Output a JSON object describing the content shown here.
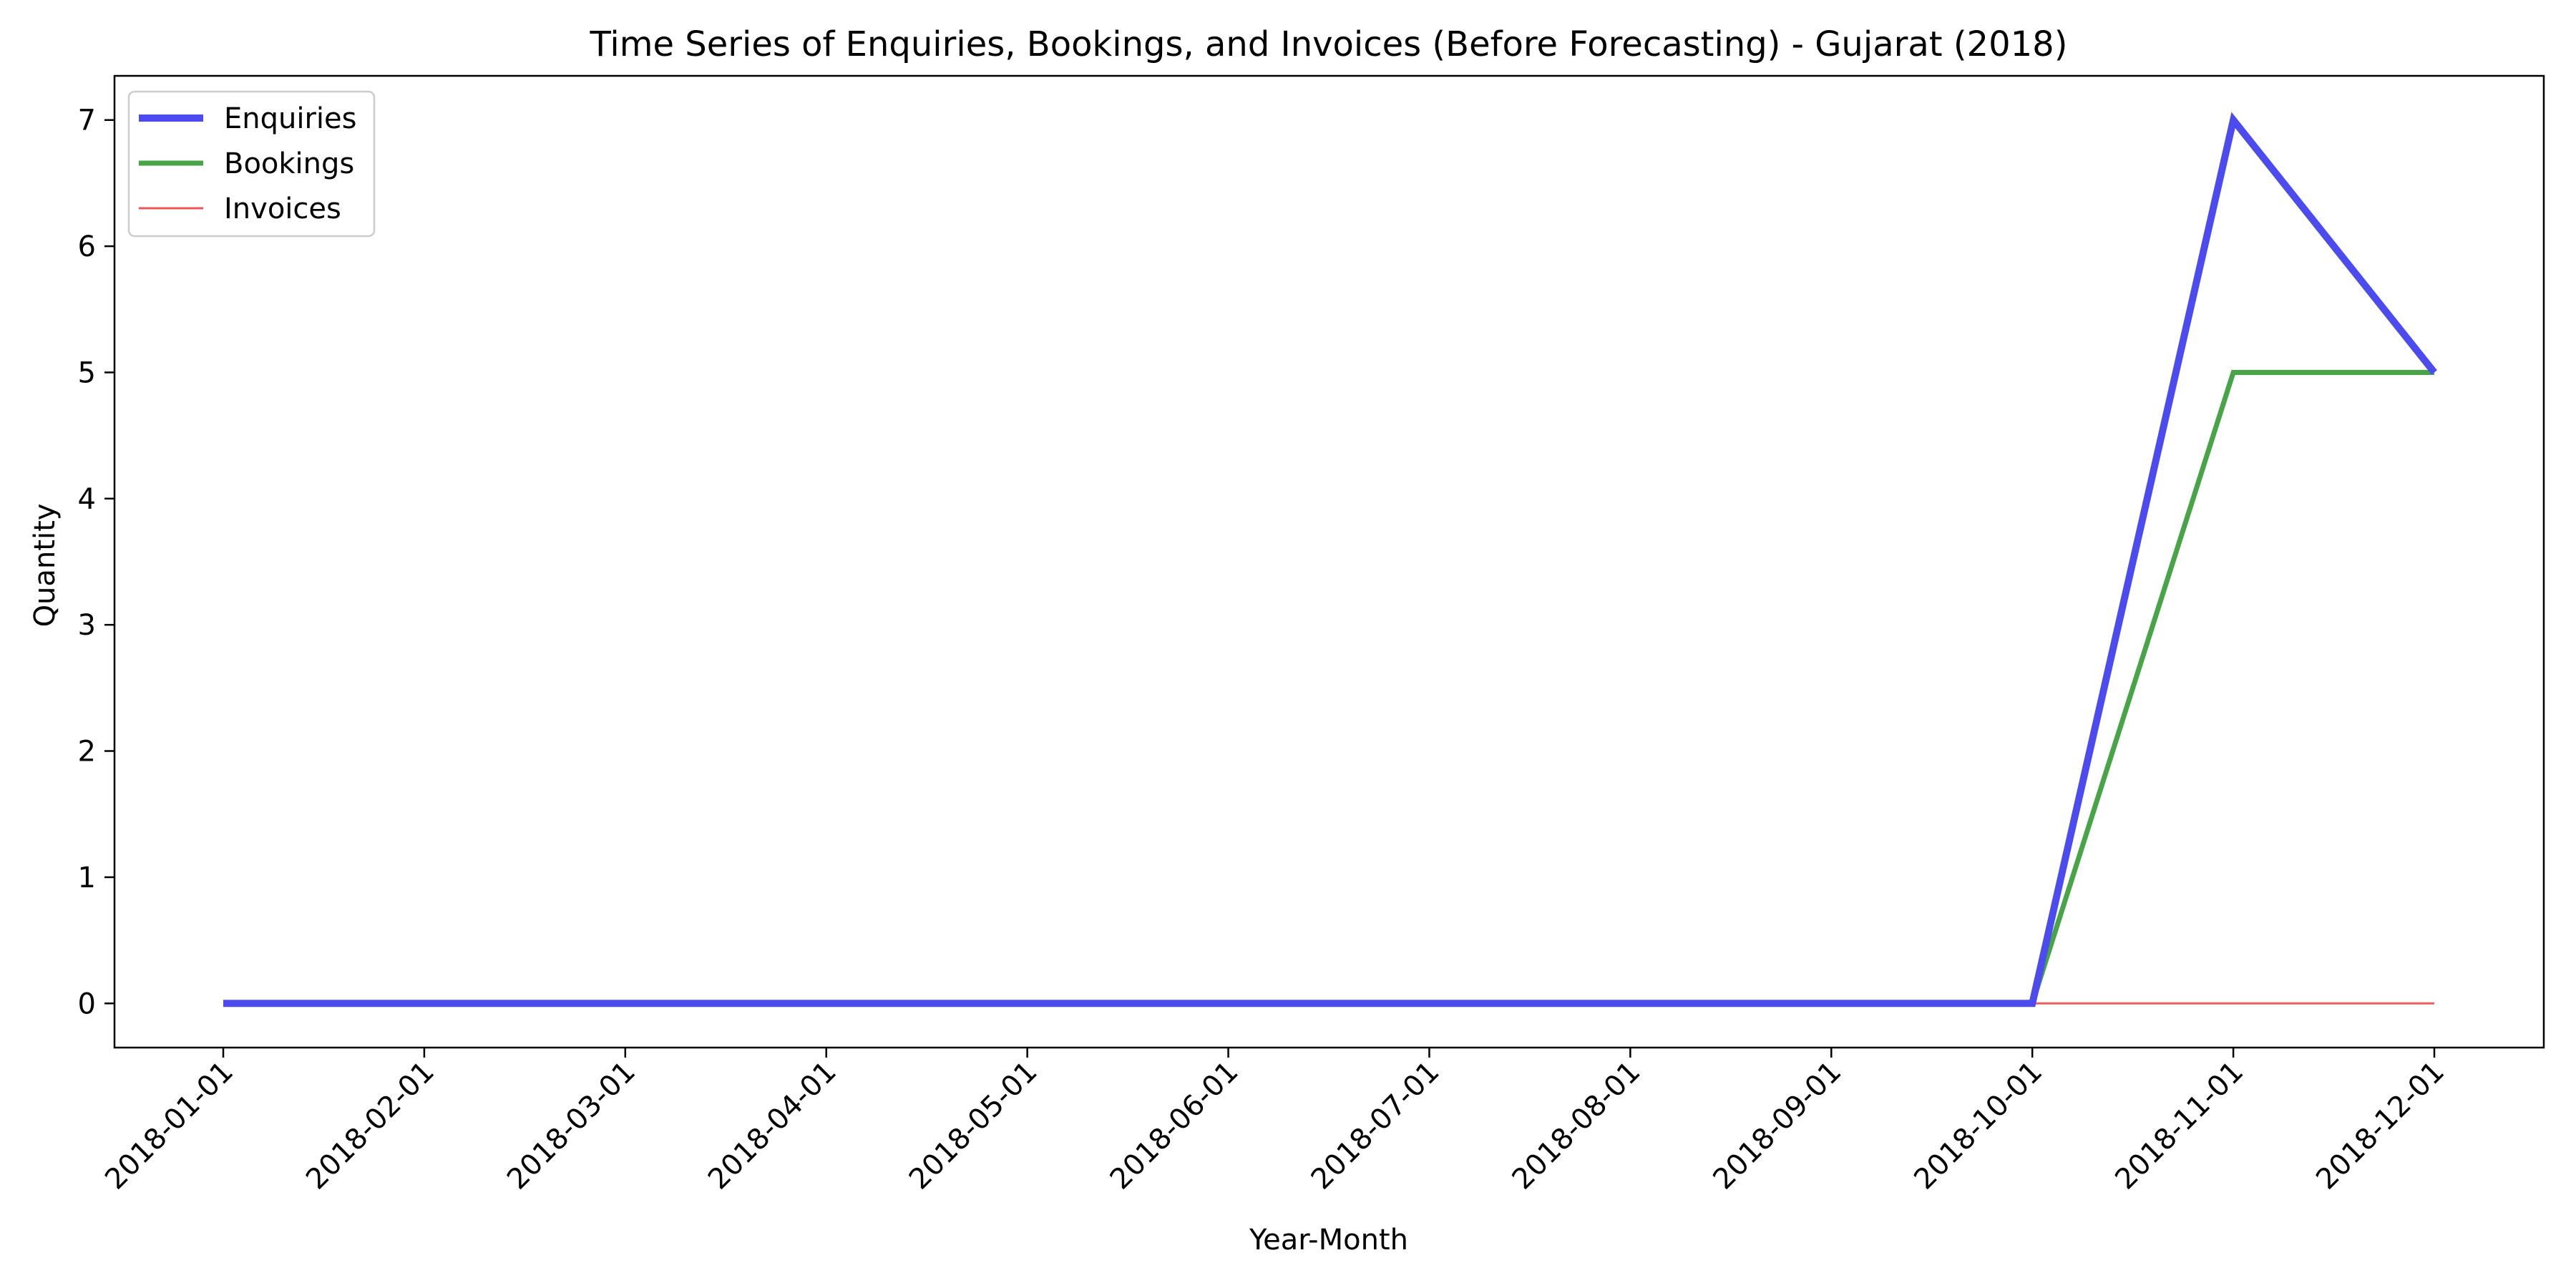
{
  "chart_data": {
    "type": "line",
    "title": "Time Series of Enquiries, Bookings, and Invoices (Before Forecasting) - Gujarat (2018)",
    "xlabel": "Year-Month",
    "ylabel": "Quantity",
    "x": [
      "2018-01-01",
      "2018-02-01",
      "2018-03-01",
      "2018-04-01",
      "2018-05-01",
      "2018-06-01",
      "2018-07-01",
      "2018-08-01",
      "2018-09-01",
      "2018-10-01",
      "2018-11-01",
      "2018-12-01"
    ],
    "ylim": [
      -0.35,
      7.35
    ],
    "yticks": [
      0,
      1,
      2,
      3,
      4,
      5,
      6,
      7
    ],
    "grid": false,
    "legend_position": "top-left",
    "series": [
      {
        "name": "Enquiries",
        "color": "#4b4bf0",
        "values": [
          0,
          0,
          0,
          0,
          0,
          0,
          0,
          0,
          0,
          0,
          7,
          5
        ]
      },
      {
        "name": "Bookings",
        "color": "#47a447",
        "values": [
          0,
          0,
          0,
          0,
          0,
          0,
          0,
          0,
          0,
          0,
          5,
          5
        ]
      },
      {
        "name": "Invoices",
        "color": "#ee5555",
        "values": [
          0,
          0,
          0,
          0,
          0,
          0,
          0,
          0,
          0,
          0,
          0,
          0
        ]
      }
    ]
  }
}
